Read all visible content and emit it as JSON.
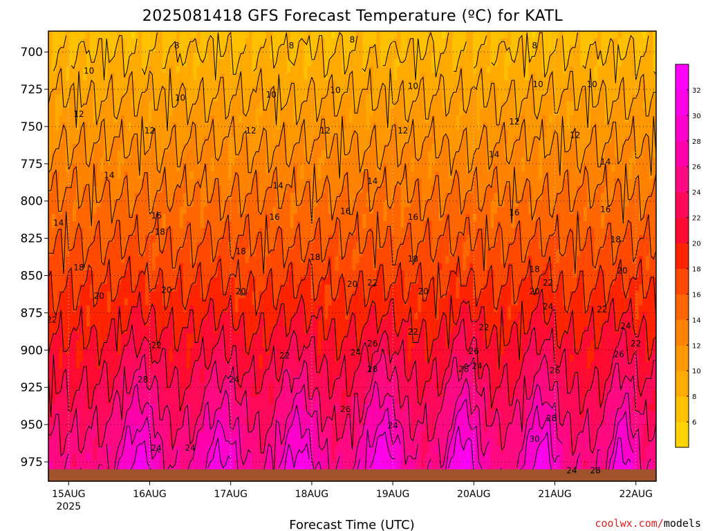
{
  "chart_data": {
    "type": "heatmap",
    "title": "2025081418 GFS Forecast Temperature (ºC) for KATL",
    "xlabel": "Forecast Time (UTC)",
    "ylabel": "",
    "credit": "coolwx.com/models",
    "y_axis": {
      "reversed": true,
      "ylim": [
        988,
        686
      ],
      "ticks": [
        700,
        725,
        750,
        775,
        800,
        825,
        850,
        875,
        900,
        925,
        950,
        975
      ],
      "grid": true
    },
    "x_axis": {
      "xlim": [
        "2025-08-14T18:00Z",
        "2025-08-22T06:00Z"
      ],
      "ticks": [
        {
          "time": "2025-08-15T00:00Z",
          "label": "15AUG",
          "sublabel": "2025"
        },
        {
          "time": "2025-08-16T00:00Z",
          "label": "16AUG"
        },
        {
          "time": "2025-08-17T00:00Z",
          "label": "17AUG"
        },
        {
          "time": "2025-08-18T00:00Z",
          "label": "18AUG"
        },
        {
          "time": "2025-08-19T00:00Z",
          "label": "19AUG"
        },
        {
          "time": "2025-08-20T00:00Z",
          "label": "20AUG"
        },
        {
          "time": "2025-08-21T00:00Z",
          "label": "21AUG"
        },
        {
          "time": "2025-08-22T00:00Z",
          "label": "22AUG"
        }
      ],
      "grid": true
    },
    "colorbar": {
      "placement": "right",
      "ticks": [
        6,
        8,
        10,
        12,
        14,
        16,
        18,
        20,
        22,
        24,
        26,
        28,
        30,
        32
      ],
      "levels": [
        {
          "min": 4,
          "max": 6,
          "color": "#ffd400"
        },
        {
          "min": 6,
          "max": 8,
          "color": "#ffc000"
        },
        {
          "min": 8,
          "max": 10,
          "color": "#ffaa00"
        },
        {
          "min": 10,
          "max": 12,
          "color": "#ff9800"
        },
        {
          "min": 12,
          "max": 14,
          "color": "#ff8200"
        },
        {
          "min": 14,
          "max": 16,
          "color": "#ff6600"
        },
        {
          "min": 16,
          "max": 18,
          "color": "#ff4800"
        },
        {
          "min": 18,
          "max": 20,
          "color": "#ff2400"
        },
        {
          "min": 20,
          "max": 22,
          "color": "#ff0a30"
        },
        {
          "min": 22,
          "max": 24,
          "color": "#ff0a5a"
        },
        {
          "min": 24,
          "max": 26,
          "color": "#ff0a82"
        },
        {
          "min": 26,
          "max": 28,
          "color": "#ff00aa"
        },
        {
          "min": 28,
          "max": 30,
          "color": "#ff00cc"
        },
        {
          "min": 30,
          "max": 32,
          "color": "#ff00e8"
        },
        {
          "min": 32,
          "max": 34,
          "color": "#ff00ff"
        }
      ]
    },
    "surface": {
      "pressure": 980,
      "color": "#a0522d"
    },
    "isotherms": [
      8,
      10,
      12,
      14,
      16,
      18,
      20,
      22,
      24,
      26,
      28,
      30
    ],
    "isotherm_labels": [
      {
        "time": "2025-08-14T21:00Z",
        "pressure": 815,
        "value": 14
      },
      {
        "time": "2025-08-15T03:00Z",
        "pressure": 742,
        "value": 12
      },
      {
        "time": "2025-08-15T06:00Z",
        "pressure": 713,
        "value": 10
      },
      {
        "time": "2025-08-15T03:00Z",
        "pressure": 845,
        "value": 18
      },
      {
        "time": "2025-08-15T09:00Z",
        "pressure": 864,
        "value": 20
      },
      {
        "time": "2025-08-14T19:00Z",
        "pressure": 880,
        "value": 22
      },
      {
        "time": "2025-08-15T12:00Z",
        "pressure": 783,
        "value": 14
      },
      {
        "time": "2025-08-16T00:00Z",
        "pressure": 753,
        "value": 12
      },
      {
        "time": "2025-08-16T08:00Z",
        "pressure": 696,
        "value": 8
      },
      {
        "time": "2025-08-16T02:00Z",
        "pressure": 810,
        "value": 16
      },
      {
        "time": "2025-08-16T03:00Z",
        "pressure": 821,
        "value": 18
      },
      {
        "time": "2025-08-16T05:00Z",
        "pressure": 860,
        "value": 20
      },
      {
        "time": "2025-08-16T02:00Z",
        "pressure": 897,
        "value": 22
      },
      {
        "time": "2025-08-15T22:00Z",
        "pressure": 920,
        "value": 28
      },
      {
        "time": "2025-08-16T02:00Z",
        "pressure": 966,
        "value": 24
      },
      {
        "time": "2025-08-16T12:00Z",
        "pressure": 966,
        "value": 24
      },
      {
        "time": "2025-08-16T09:00Z",
        "pressure": 731,
        "value": 10
      },
      {
        "time": "2025-08-17T06:00Z",
        "pressure": 753,
        "value": 12
      },
      {
        "time": "2025-08-17T12:00Z",
        "pressure": 729,
        "value": 10
      },
      {
        "time": "2025-08-17T18:00Z",
        "pressure": 696,
        "value": 8
      },
      {
        "time": "2025-08-17T14:00Z",
        "pressure": 790,
        "value": 14
      },
      {
        "time": "2025-08-17T13:00Z",
        "pressure": 811,
        "value": 16
      },
      {
        "time": "2025-08-17T03:00Z",
        "pressure": 834,
        "value": 18
      },
      {
        "time": "2025-08-17T03:00Z",
        "pressure": 861,
        "value": 20
      },
      {
        "time": "2025-08-17T01:00Z",
        "pressure": 920,
        "value": 24
      },
      {
        "time": "2025-08-17T16:00Z",
        "pressure": 904,
        "value": 22
      },
      {
        "time": "2025-08-18T01:00Z",
        "pressure": 838,
        "value": 18
      },
      {
        "time": "2025-08-18T04:00Z",
        "pressure": 753,
        "value": 12
      },
      {
        "time": "2025-08-18T07:00Z",
        "pressure": 726,
        "value": 10
      },
      {
        "time": "2025-08-18T12:00Z",
        "pressure": 692,
        "value": 8
      },
      {
        "time": "2025-08-18T10:00Z",
        "pressure": 807,
        "value": 16
      },
      {
        "time": "2025-08-18T12:00Z",
        "pressure": 856,
        "value": 20
      },
      {
        "time": "2025-08-18T13:00Z",
        "pressure": 902,
        "value": 24
      },
      {
        "time": "2025-08-18T10:00Z",
        "pressure": 940,
        "value": 26
      },
      {
        "time": "2025-08-18T18:00Z",
        "pressure": 896,
        "value": 26
      },
      {
        "time": "2025-08-18T18:00Z",
        "pressure": 855,
        "value": 22
      },
      {
        "time": "2025-08-18T18:00Z",
        "pressure": 913,
        "value": 28
      },
      {
        "time": "2025-08-19T00:00Z",
        "pressure": 951,
        "value": 24
      },
      {
        "time": "2025-08-18T18:00Z",
        "pressure": 787,
        "value": 14
      },
      {
        "time": "2025-08-19T03:00Z",
        "pressure": 753,
        "value": 12
      },
      {
        "time": "2025-08-19T06:00Z",
        "pressure": 723,
        "value": 10
      },
      {
        "time": "2025-08-19T06:00Z",
        "pressure": 811,
        "value": 16
      },
      {
        "time": "2025-08-19T06:00Z",
        "pressure": 839,
        "value": 18
      },
      {
        "time": "2025-08-19T09:00Z",
        "pressure": 861,
        "value": 20
      },
      {
        "time": "2025-08-19T06:00Z",
        "pressure": 888,
        "value": 22
      },
      {
        "time": "2025-08-19T21:00Z",
        "pressure": 913,
        "value": 28
      },
      {
        "time": "2025-08-20T00:00Z",
        "pressure": 901,
        "value": 26
      },
      {
        "time": "2025-08-20T01:00Z",
        "pressure": 911,
        "value": 24
      },
      {
        "time": "2025-08-20T03:00Z",
        "pressure": 885,
        "value": 22
      },
      {
        "time": "2025-08-20T12:00Z",
        "pressure": 808,
        "value": 16
      },
      {
        "time": "2025-08-20T12:00Z",
        "pressure": 747,
        "value": 12
      },
      {
        "time": "2025-08-20T06:00Z",
        "pressure": 769,
        "value": 14
      },
      {
        "time": "2025-08-20T18:00Z",
        "pressure": 696,
        "value": 8
      },
      {
        "time": "2025-08-20T19:00Z",
        "pressure": 722,
        "value": 10
      },
      {
        "time": "2025-08-20T18:00Z",
        "pressure": 846,
        "value": 18
      },
      {
        "time": "2025-08-20T18:00Z",
        "pressure": 861,
        "value": 20
      },
      {
        "time": "2025-08-20T22:00Z",
        "pressure": 855,
        "value": 22
      },
      {
        "time": "2025-08-20T22:00Z",
        "pressure": 871,
        "value": 24
      },
      {
        "time": "2025-08-21T00:00Z",
        "pressure": 914,
        "value": 26
      },
      {
        "time": "2025-08-20T23:00Z",
        "pressure": 946,
        "value": 28
      },
      {
        "time": "2025-08-20T18:00Z",
        "pressure": 960,
        "value": 30
      },
      {
        "time": "2025-08-21T05:00Z",
        "pressure": 981,
        "value": 24
      },
      {
        "time": "2025-08-21T12:00Z",
        "pressure": 981,
        "value": 28
      },
      {
        "time": "2025-08-21T06:00Z",
        "pressure": 756,
        "value": 12
      },
      {
        "time": "2025-08-21T11:00Z",
        "pressure": 722,
        "value": 10
      },
      {
        "time": "2025-08-21T15:00Z",
        "pressure": 774,
        "value": 14
      },
      {
        "time": "2025-08-21T15:00Z",
        "pressure": 806,
        "value": 16
      },
      {
        "time": "2025-08-21T18:00Z",
        "pressure": 826,
        "value": 18
      },
      {
        "time": "2025-08-21T20:00Z",
        "pressure": 847,
        "value": 20
      },
      {
        "time": "2025-08-21T14:00Z",
        "pressure": 873,
        "value": 22
      },
      {
        "time": "2025-08-21T21:00Z",
        "pressure": 884,
        "value": 24
      },
      {
        "time": "2025-08-22T00:00Z",
        "pressure": 896,
        "value": 22
      },
      {
        "time": "2025-08-21T19:00Z",
        "pressure": 903,
        "value": 26
      }
    ]
  }
}
